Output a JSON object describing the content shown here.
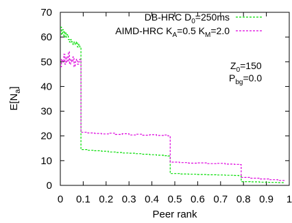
{
  "chart_data": {
    "type": "line",
    "xlabel": "Peer rank",
    "ylabel": {
      "base": "E[N",
      "sub": "a",
      "tail": "]"
    },
    "xlim": [
      0,
      1
    ],
    "ylim": [
      0,
      70
    ],
    "xticks": [
      "0",
      "0.1",
      "0.2",
      "0.3",
      "0.4",
      "0.5",
      "0.6",
      "0.7",
      "0.8",
      "0.9",
      "1"
    ],
    "yticks": [
      "0",
      "10",
      "20",
      "30",
      "40",
      "50",
      "60",
      "70"
    ],
    "grid": false,
    "legend_position": "top-right",
    "legend": [
      {
        "parts": [
          {
            "t": "DB-HRC D"
          },
          {
            "t": "0",
            "sub": true
          },
          {
            "t": "=250ms"
          }
        ]
      },
      {
        "parts": [
          {
            "t": "AIMD-HRC K"
          },
          {
            "t": "A",
            "sub": true
          },
          {
            "t": "=0.5 K"
          },
          {
            "t": "M",
            "sub": true
          },
          {
            "t": "=2.0"
          }
        ]
      }
    ],
    "annotations": [
      {
        "parts": [
          {
            "t": "Z"
          },
          {
            "t": "0",
            "sub": true
          },
          {
            "t": "=150"
          }
        ]
      },
      {
        "parts": [
          {
            "t": "P"
          },
          {
            "t": "bg",
            "sub": true
          },
          {
            "t": "=0.0"
          }
        ]
      }
    ],
    "series": [
      {
        "legend_index": 0,
        "color": "#00dd00",
        "x": [
          0,
          0.005,
          0.01,
          0.015,
          0.02,
          0.025,
          0.03,
          0.035,
          0.04,
          0.045,
          0.05,
          0.055,
          0.06,
          0.065,
          0.07,
          0.075,
          0.08,
          0.085,
          0.09,
          0.12,
          0.15,
          0.18,
          0.21,
          0.24,
          0.27,
          0.3,
          0.33,
          0.36,
          0.39,
          0.42,
          0.45,
          0.47,
          0.48,
          0.52,
          0.56,
          0.6,
          0.64,
          0.68,
          0.72,
          0.76,
          0.78,
          0.79,
          0.83,
          0.87,
          0.91,
          0.95,
          0.98
        ],
        "values": [
          64,
          61,
          63,
          60,
          62,
          60,
          61,
          59,
          58,
          59,
          58,
          57,
          58,
          57,
          58,
          56,
          57,
          56,
          14.5,
          14.2,
          14.0,
          13.8,
          13.5,
          13.3,
          13.1,
          13.0,
          12.8,
          12.6,
          12.4,
          12.2,
          12.0,
          11.9,
          4.8,
          4.6,
          4.5,
          4.4,
          4.3,
          4.2,
          4.1,
          4.0,
          3.9,
          1.5,
          1.4,
          1.3,
          1.2,
          1.1,
          1.0
        ]
      },
      {
        "legend_index": 1,
        "color": "#dd00dd",
        "x": [
          0,
          0.005,
          0.01,
          0.015,
          0.02,
          0.025,
          0.03,
          0.035,
          0.04,
          0.045,
          0.05,
          0.055,
          0.06,
          0.065,
          0.07,
          0.075,
          0.08,
          0.085,
          0.09,
          0.12,
          0.15,
          0.18,
          0.21,
          0.24,
          0.27,
          0.3,
          0.33,
          0.36,
          0.39,
          0.42,
          0.45,
          0.47,
          0.48,
          0.52,
          0.56,
          0.6,
          0.64,
          0.68,
          0.72,
          0.76,
          0.78,
          0.79,
          0.83,
          0.87,
          0.91,
          0.95,
          0.98
        ],
        "values": [
          48,
          51,
          50,
          53,
          49,
          52,
          50,
          54,
          49,
          51,
          50,
          52,
          48,
          50,
          51,
          49,
          50,
          51,
          21.5,
          21.2,
          21.0,
          20.8,
          21.1,
          20.6,
          20.9,
          20.4,
          20.7,
          20.3,
          20.5,
          20.2,
          20.4,
          20.0,
          9.4,
          9.2,
          9.0,
          9.1,
          8.8,
          8.9,
          8.6,
          8.5,
          8.4,
          3.2,
          2.9,
          2.6,
          2.3,
          2.0,
          1.8
        ]
      }
    ]
  }
}
